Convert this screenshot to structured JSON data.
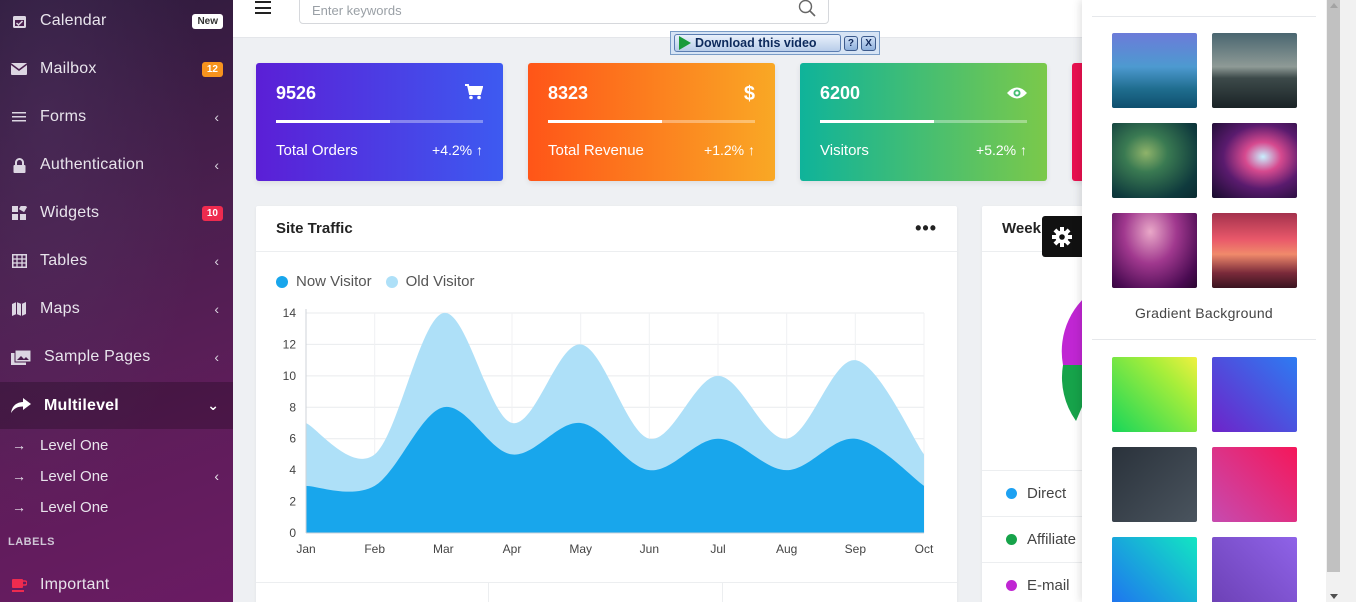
{
  "sidebar": {
    "items": [
      {
        "label": "Calendar",
        "icon": "calendar-icon",
        "badge": "New"
      },
      {
        "label": "Mailbox",
        "icon": "mail-icon",
        "badge": "12"
      },
      {
        "label": "Forms",
        "icon": "list-icon"
      },
      {
        "label": "Authentication",
        "icon": "lock-icon"
      },
      {
        "label": "Widgets",
        "icon": "widgets-icon",
        "badge": "10"
      },
      {
        "label": "Tables",
        "icon": "table-icon"
      },
      {
        "label": "Maps",
        "icon": "map-icon"
      },
      {
        "label": "Sample Pages",
        "icon": "images-icon"
      },
      {
        "label": "Multilevel",
        "icon": "share-icon"
      }
    ],
    "subitems": [
      {
        "label": "Level One"
      },
      {
        "label": "Level One"
      },
      {
        "label": "Level One"
      }
    ],
    "section_label": "LABELS",
    "label_items": [
      {
        "label": "Important",
        "icon": "coffee-icon"
      }
    ]
  },
  "topbar": {
    "search_placeholder": "Enter keywords",
    "download_label": "Download this video",
    "download_help": "?",
    "download_close": "X"
  },
  "stats": [
    {
      "value": "9526",
      "title": "Total Orders",
      "change": "+4.2% ↑",
      "icon": "cart-icon",
      "progress": 0.55
    },
    {
      "value": "8323",
      "title": "Total Revenue",
      "change": "+1.2% ↑",
      "icon": "dollar-icon",
      "progress": 0.55
    },
    {
      "value": "6200",
      "title": "Visitors",
      "change": "+5.2% ↑",
      "icon": "eye-icon",
      "progress": 0.55
    }
  ],
  "traffic": {
    "title": "Site Traffic",
    "more": "•••"
  },
  "weekly": {
    "title": "Week",
    "legend": [
      {
        "label": "Direct",
        "color": "#1da1f2"
      },
      {
        "label": "Affiliate",
        "color": "#16a34a"
      },
      {
        "label": "E-mail",
        "color": "#c026d3"
      }
    ]
  },
  "settings": {
    "gradient_label": "Gradient Background"
  },
  "colors": {
    "now_visitor": "#18a6ec",
    "old_visitor": "#aee0f8"
  },
  "chart_data": {
    "type": "area",
    "categories": [
      "Jan",
      "Feb",
      "Mar",
      "Apr",
      "May",
      "Jun",
      "Jul",
      "Aug",
      "Sep",
      "Oct"
    ],
    "ylim": [
      0,
      14
    ],
    "yticks": [
      0,
      2,
      4,
      6,
      8,
      10,
      12,
      14
    ],
    "grid": true,
    "legend_position": "top-left",
    "series": [
      {
        "name": "Now Visitor",
        "values": [
          3,
          3,
          8,
          5,
          7,
          4,
          6,
          4,
          6,
          3
        ]
      },
      {
        "name": "Old Visitor",
        "values": [
          7,
          5,
          14,
          7,
          12,
          6,
          10,
          6,
          11,
          5
        ]
      }
    ]
  }
}
